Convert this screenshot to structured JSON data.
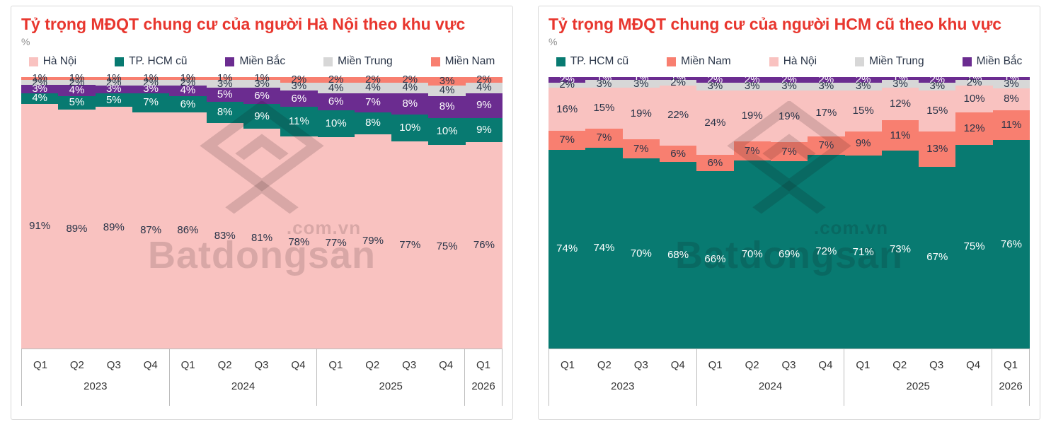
{
  "colors": {
    "pink": "#F9C2C0",
    "teal": "#087A71",
    "purple": "#6B2C90",
    "gray": "#D7D7D7",
    "salmon": "#F87F70",
    "title_red": "#E8362E",
    "axis_text": "#333333",
    "dark_label": "#283347",
    "light_label": "#FFFFFF",
    "card_border": "#D9D9D9"
  },
  "watermark": {
    "brand": "Batdongsan",
    "domain": ".com.vn"
  },
  "chart_data": [
    {
      "type": "area",
      "variant": "stacked-step-area",
      "title": "Tỷ trọng MĐQT chung cư của người Hà Nội theo khu vực",
      "unit": "%",
      "ylim": [
        0,
        100
      ],
      "grid": false,
      "legend_position": "top",
      "categories": [
        "Q1",
        "Q2",
        "Q3",
        "Q4",
        "Q1",
        "Q2",
        "Q3",
        "Q4",
        "Q1",
        "Q2",
        "Q3",
        "Q4",
        "Q1"
      ],
      "year_groups": [
        {
          "label": "2023",
          "span": 4
        },
        {
          "label": "2024",
          "span": 4
        },
        {
          "label": "2025",
          "span": 4
        },
        {
          "label": "2026",
          "span": 1
        }
      ],
      "legend_order": [
        "Hà Nội",
        "TP. HCM cũ",
        "Miền Bắc",
        "Miền Trung",
        "Miền Nam"
      ],
      "series": [
        {
          "name": "Hà Nội",
          "color": "pink",
          "label_style": "dark",
          "values": [
            91,
            89,
            89,
            87,
            86,
            83,
            81,
            78,
            77,
            79,
            77,
            75,
            76
          ]
        },
        {
          "name": "TP. HCM cũ",
          "color": "teal",
          "label_style": "light",
          "values": [
            4,
            5,
            5,
            7,
            6,
            8,
            9,
            11,
            10,
            8,
            10,
            10,
            9
          ]
        },
        {
          "name": "Miền Bắc",
          "color": "purple",
          "label_style": "light",
          "values": [
            3,
            4,
            3,
            3,
            4,
            5,
            6,
            6,
            6,
            7,
            8,
            8,
            9
          ]
        },
        {
          "name": "Miền Trung",
          "color": "gray",
          "label_style": "dark",
          "values": [
            2,
            2,
            2,
            2,
            2,
            3,
            3,
            3,
            4,
            4,
            4,
            4,
            4
          ]
        },
        {
          "name": "Miền Nam",
          "color": "salmon",
          "label_style": "dark",
          "values": [
            1,
            1,
            1,
            1,
            1,
            1,
            1,
            2,
            2,
            2,
            2,
            3,
            2
          ]
        }
      ]
    },
    {
      "type": "area",
      "variant": "stacked-step-area",
      "title": "Tỷ trọng MĐQT chung cư của người HCM cũ theo khu vực",
      "unit": "%",
      "ylim": [
        0,
        100
      ],
      "grid": false,
      "legend_position": "top",
      "categories": [
        "Q1",
        "Q2",
        "Q3",
        "Q4",
        "Q1",
        "Q2",
        "Q3",
        "Q4",
        "Q1",
        "Q2",
        "Q3",
        "Q4",
        "Q1"
      ],
      "year_groups": [
        {
          "label": "2023",
          "span": 4
        },
        {
          "label": "2024",
          "span": 4
        },
        {
          "label": "2025",
          "span": 4
        },
        {
          "label": "2026",
          "span": 1
        }
      ],
      "legend_order": [
        "TP. HCM cũ",
        "Miền Nam",
        "Hà Nội",
        "Miền Trung",
        "Miền Bắc"
      ],
      "series": [
        {
          "name": "TP. HCM cũ",
          "color": "teal",
          "label_style": "light",
          "values": [
            74,
            74,
            70,
            68,
            66,
            70,
            69,
            72,
            71,
            73,
            67,
            75,
            76
          ]
        },
        {
          "name": "Miền Nam",
          "color": "salmon",
          "label_style": "dark",
          "values": [
            7,
            7,
            7,
            6,
            6,
            7,
            7,
            7,
            9,
            11,
            13,
            12,
            11
          ]
        },
        {
          "name": "Hà Nội",
          "color": "pink",
          "label_style": "dark",
          "values": [
            16,
            15,
            19,
            22,
            24,
            19,
            19,
            17,
            15,
            12,
            15,
            10,
            8
          ]
        },
        {
          "name": "Miền Trung",
          "color": "gray",
          "label_style": "dark",
          "values": [
            2,
            3,
            3,
            2,
            3,
            3,
            3,
            3,
            3,
            3,
            3,
            2,
            3
          ]
        },
        {
          "name": "Miền Bắc",
          "color": "purple",
          "label_style": "light",
          "values": [
            2,
            1,
            1,
            1,
            2,
            2,
            2,
            2,
            2,
            1,
            2,
            1,
            1
          ]
        }
      ]
    }
  ]
}
